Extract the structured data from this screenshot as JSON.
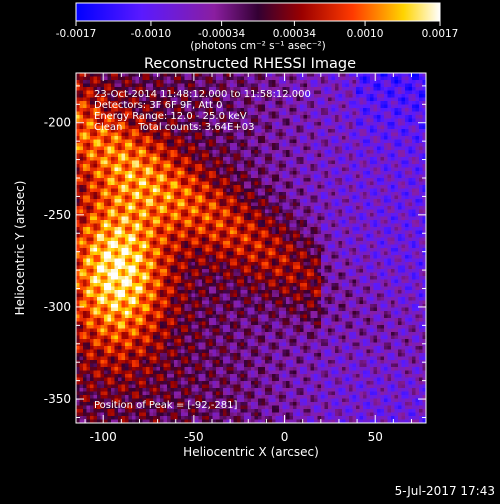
{
  "colorbar": {
    "tick_labels": [
      "-0.0017",
      "-0.0010",
      "-0.00034",
      "0.00034",
      "0.0010",
      "0.0017"
    ],
    "tick_values": [
      -0.0017,
      -0.001,
      -0.00034,
      0.00034,
      0.001,
      0.0017
    ],
    "range": [
      -0.0017,
      0.0017
    ],
    "colors": [
      "#0000ff",
      "#5a1aff",
      "#8a1ea0",
      "#330033",
      "#9a0000",
      "#ff3a00",
      "#ffd400",
      "#ffffff"
    ]
  },
  "chart_data": {
    "type": "heatmap",
    "title": "Reconstructed RHESSI Image",
    "units_label": "(photons cm⁻² s⁻¹ asec⁻²)",
    "xlabel": "Heliocentric X (arcsec)",
    "ylabel": "Heliocentric Y (arcsec)",
    "xlim": [
      -115,
      78
    ],
    "ylim": [
      -363,
      -173
    ],
    "x_ticks": [
      -100,
      -50,
      0,
      50
    ],
    "x_tick_labels": [
      "-100",
      "-50",
      "0",
      "50"
    ],
    "y_ticks": [
      -200,
      -250,
      -300,
      -350
    ],
    "y_tick_labels": [
      "-200",
      "-250",
      "-300",
      "-350"
    ],
    "annotations": [
      "23-Oct-2014 11:48:12.000 to 11:58:12.000",
      "Detectors: 3F 6F 9F, Att 0",
      "Energy Range: 12.0 - 25.0 keV",
      "Clean     Total counts: 3.64E+03"
    ],
    "peak_label": "Position of Peak = [-92,-281]",
    "peak": [
      -92,
      -281
    ],
    "value_range": [
      -0.0017,
      0.0017
    ]
  },
  "footer": {
    "timestamp": "5-Jul-2017 17:43"
  }
}
